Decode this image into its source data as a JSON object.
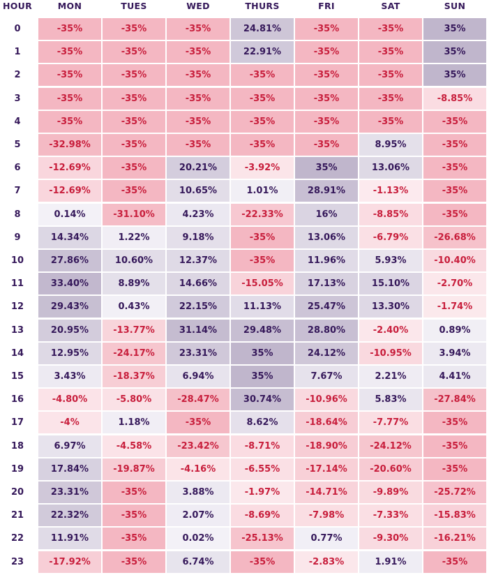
{
  "chart_data": {
    "type": "heatmap",
    "row_header": "HOUR",
    "columns": [
      "MON",
      "TUES",
      "WED",
      "THURS",
      "FRI",
      "SAT",
      "SUN"
    ],
    "rows": [
      "0",
      "1",
      "2",
      "3",
      "4",
      "5",
      "6",
      "7",
      "8",
      "9",
      "10",
      "11",
      "12",
      "13",
      "14",
      "15",
      "16",
      "17",
      "18",
      "19",
      "20",
      "21",
      "22",
      "23"
    ],
    "cells": [
      [
        "-35%",
        "-35%",
        "-35%",
        "24.81%",
        "-35%",
        "-35%",
        "35%"
      ],
      [
        "-35%",
        "-35%",
        "-35%",
        "22.91%",
        "-35%",
        "-35%",
        "35%"
      ],
      [
        "-35%",
        "-35%",
        "-35%",
        "-35%",
        "-35%",
        "-35%",
        "35%"
      ],
      [
        "-35%",
        "-35%",
        "-35%",
        "-35%",
        "-35%",
        "-35%",
        "-8.85%"
      ],
      [
        "-35%",
        "-35%",
        "-35%",
        "-35%",
        "-35%",
        "-35%",
        "-35%"
      ],
      [
        "-32.98%",
        "-35%",
        "-35%",
        "-35%",
        "-35%",
        "8.95%",
        "-35%"
      ],
      [
        "-12.69%",
        "-35%",
        "20.21%",
        "-3.92%",
        "35%",
        "13.06%",
        "-35%"
      ],
      [
        "-12.69%",
        "-35%",
        "10.65%",
        "1.01%",
        "28.91%",
        "-1.13%",
        "-35%"
      ],
      [
        "0.14%",
        "-31.10%",
        "4.23%",
        "-22.33%",
        "16%",
        "-8.85%",
        "-35%"
      ],
      [
        "14.34%",
        "1.22%",
        "9.18%",
        "-35%",
        "13.06%",
        "-6.79%",
        "-26.68%"
      ],
      [
        "27.86%",
        "10.60%",
        "12.37%",
        "-35%",
        "11.96%",
        "5.93%",
        "-10.40%"
      ],
      [
        "33.40%",
        "8.89%",
        "14.66%",
        "-15.05%",
        "17.13%",
        "15.10%",
        "-2.70%"
      ],
      [
        "29.43%",
        "0.43%",
        "22.15%",
        "11.13%",
        "25.47%",
        "13.30%",
        "-1.74%"
      ],
      [
        "20.95%",
        "-13.77%",
        "31.14%",
        "29.48%",
        "28.80%",
        "-2.40%",
        "0.89%"
      ],
      [
        "12.95%",
        "-24.17%",
        "23.31%",
        "35%",
        "24.12%",
        "-10.95%",
        "3.94%"
      ],
      [
        "3.43%",
        "-18.37%",
        "6.94%",
        "35%",
        "7.67%",
        "2.21%",
        "4.41%"
      ],
      [
        "-4.80%",
        "-5.80%",
        "-28.47%",
        "30.74%",
        "-10.96%",
        "5.83%",
        "-27.84%"
      ],
      [
        "-4%",
        "1.18%",
        "-35%",
        "8.62%",
        "-18.64%",
        "-7.77%",
        "-35%"
      ],
      [
        "6.97%",
        "-4.58%",
        "-23.42%",
        "-8.71%",
        "-18.90%",
        "-24.12%",
        "-35%"
      ],
      [
        "17.84%",
        "-19.87%",
        "-4.16%",
        "-6.55%",
        "-17.14%",
        "-20.60%",
        "-35%"
      ],
      [
        "23.31%",
        "-35%",
        "3.88%",
        "-1.97%",
        "-14.71%",
        "-9.89%",
        "-25.72%"
      ],
      [
        "22.32%",
        "-35%",
        "2.07%",
        "-8.69%",
        "-7.98%",
        "-7.33%",
        "-15.83%"
      ],
      [
        "11.91%",
        "-35%",
        "0.02%",
        "-25.13%",
        "0.77%",
        "-9.30%",
        "-16.21%"
      ],
      [
        "-17.92%",
        "-35%",
        "6.74%",
        "-35%",
        "-2.83%",
        "1.91%",
        "-35%"
      ]
    ],
    "value_range": [
      -35,
      35
    ],
    "colors": {
      "negative_max": "#f4b7c2",
      "negative_min": "#fcedf0",
      "positive_min": "#f3f1f7",
      "positive_max": "#c0b6cc",
      "negative_text": "#c81e3c",
      "positive_text": "#35185a",
      "header_text": "#35185a"
    }
  }
}
